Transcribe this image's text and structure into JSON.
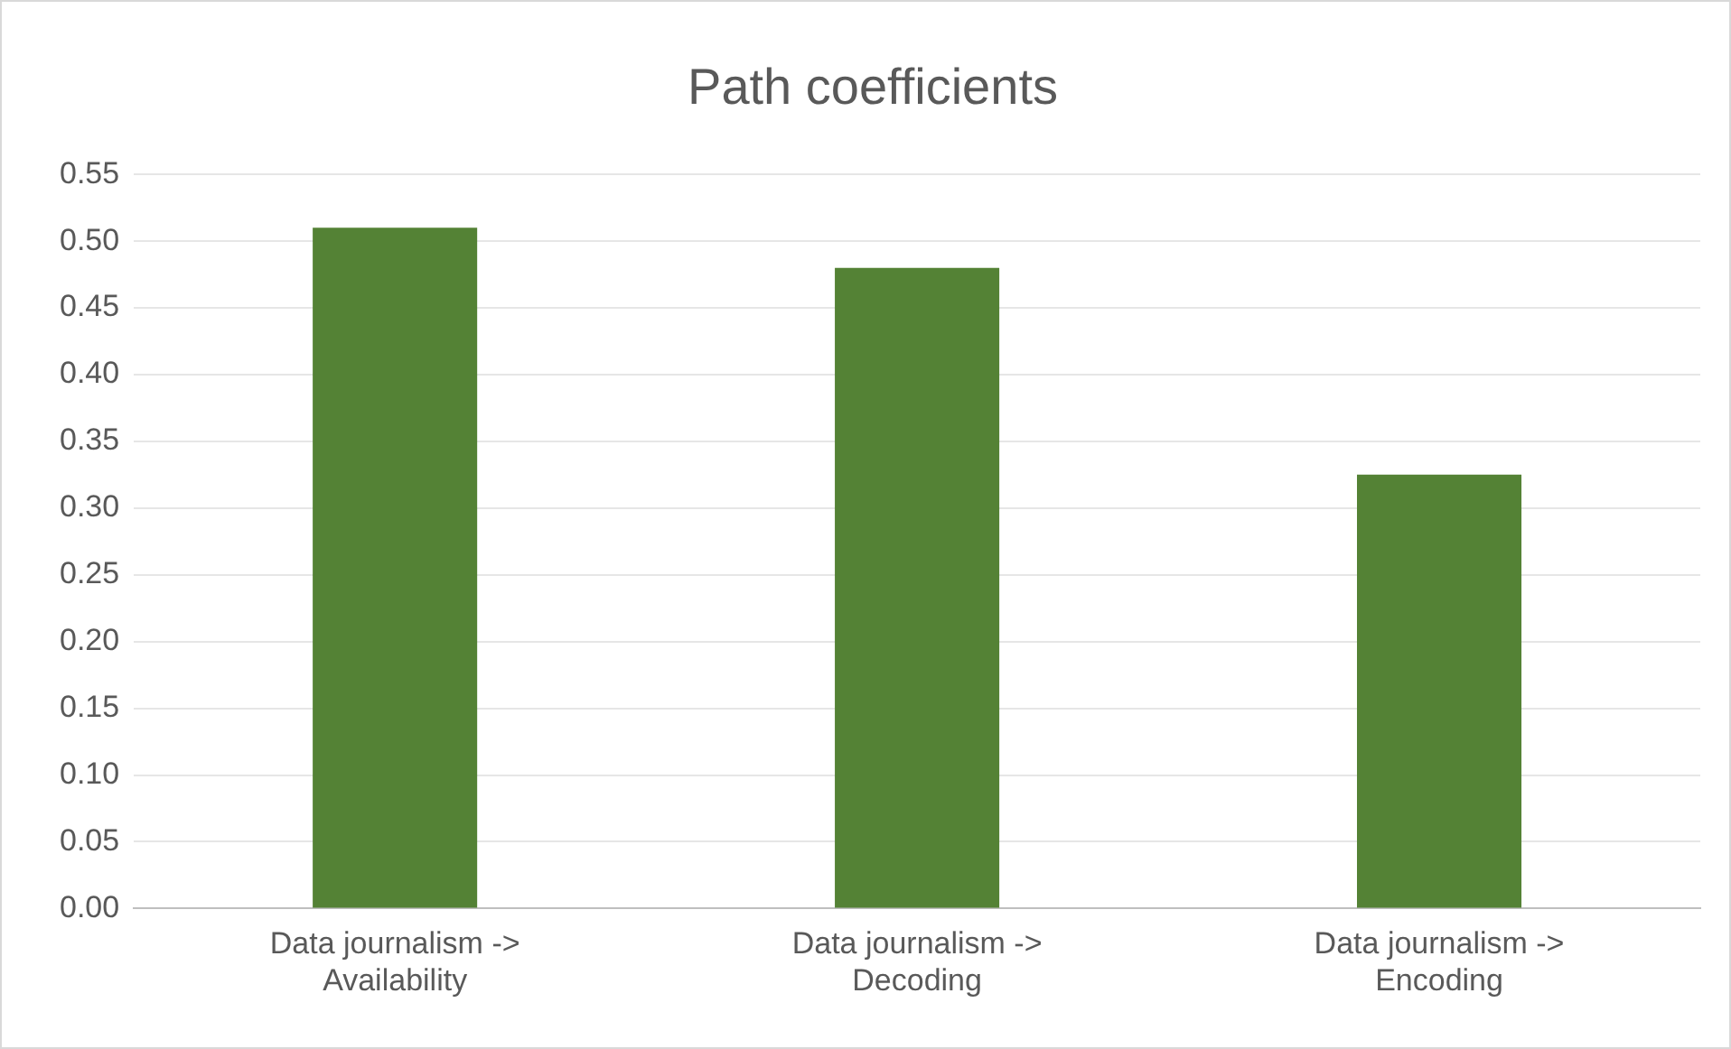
{
  "chart_data": {
    "type": "bar",
    "title": "Path coefficients",
    "categories": [
      "Data journalism -> Availability",
      "Data journalism -> Decoding",
      "Data journalism -> Encoding"
    ],
    "values": [
      0.51,
      0.48,
      0.325
    ],
    "color": "#548235",
    "ylim": [
      0,
      0.55
    ],
    "yticks": [
      {
        "value": 0,
        "label": "0.00"
      },
      0.05,
      {
        "value": 0.1,
        "label": "0.10"
      },
      0.15,
      {
        "value": 0.2,
        "label": "0.20"
      },
      0.25,
      {
        "value": 0.3,
        "label": "0.30"
      },
      0.35,
      {
        "value": 0.4,
        "label": "0.40"
      },
      0.45,
      {
        "value": 0.5,
        "label": "0.50"
      },
      0.55
    ],
    "grid": "y"
  }
}
